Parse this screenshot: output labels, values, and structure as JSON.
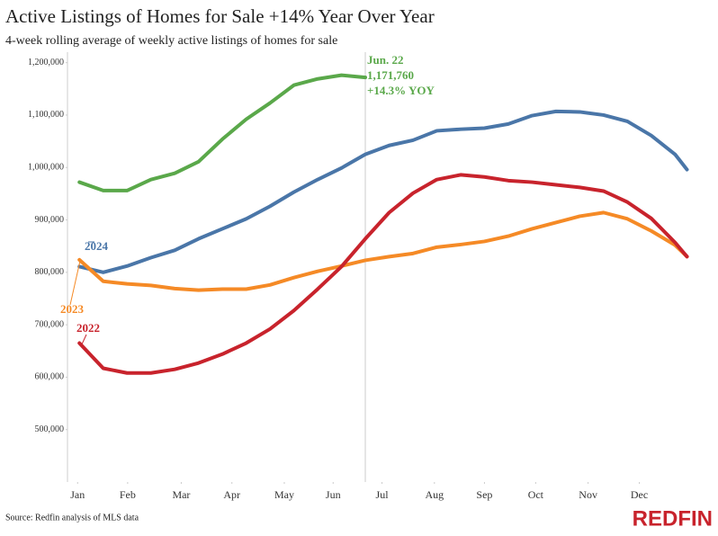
{
  "chart_data": {
    "type": "line",
    "title": "Active Listings of Homes for Sale +14% Year Over Year",
    "subtitle": "4-week rolling average of weekly active listings of homes for sale",
    "source": "Source: Redfin analysis of MLS data",
    "logo": "REDFIN",
    "annotations": [
      "Jun. 22",
      "1,171,760",
      "+14.3% YOY"
    ],
    "x": [
      1,
      3,
      5,
      7,
      9,
      11,
      13,
      15,
      17,
      19,
      21,
      23,
      25,
      27,
      29,
      31,
      33,
      35,
      37,
      39,
      41,
      43,
      45,
      47,
      49,
      51,
      52
    ],
    "xlim": [
      0,
      54
    ],
    "xticks": [
      {
        "value": 0.85,
        "label": "Jan"
      },
      {
        "value": 5.05,
        "label": "Feb"
      },
      {
        "value": 9.55,
        "label": "Mar"
      },
      {
        "value": 13.8,
        "label": "Apr"
      },
      {
        "value": 18.2,
        "label": "May"
      },
      {
        "value": 22.3,
        "label": "Jun"
      },
      {
        "value": 26.4,
        "label": "Jul"
      },
      {
        "value": 30.8,
        "label": "Aug"
      },
      {
        "value": 35.0,
        "label": "Sep"
      },
      {
        "value": 39.3,
        "label": "Oct"
      },
      {
        "value": 43.7,
        "label": "Nov"
      },
      {
        "value": 48.0,
        "label": "Dec"
      }
    ],
    "ylim": [
      400000,
      1220000
    ],
    "yticks": [
      {
        "value": 500000,
        "label": "500,000"
      },
      {
        "value": 600000,
        "label": "600,000"
      },
      {
        "value": 700000,
        "label": "700,000"
      },
      {
        "value": 800000,
        "label": "800,000"
      },
      {
        "value": 900000,
        "label": "900,000"
      },
      {
        "value": 1000000,
        "label": "1,000,000"
      },
      {
        "value": 1100000,
        "label": "1,100,000"
      },
      {
        "value": 1200000,
        "label": "1,200,000"
      }
    ],
    "series": [
      {
        "color": "#5aa84a",
        "values": [
          972000,
          956000,
          956000,
          977000,
          989000,
          1011000,
          1054000,
          1092000,
          1123000,
          1157000,
          1169000,
          1176000,
          1171760,
          null,
          null,
          null,
          null,
          null,
          null,
          null,
          null,
          null,
          null,
          null,
          null,
          null,
          null
        ]
      },
      {
        "name": "2024",
        "color": "#4a76a8",
        "values": [
          811000,
          800000,
          812000,
          828000,
          842000,
          864000,
          883000,
          902000,
          926000,
          953000,
          977000,
          999000,
          1025000,
          1042000,
          1052000,
          1070000,
          1073000,
          1075000,
          1083000,
          1099000,
          1107000,
          1106000,
          1100000,
          1088000,
          1061000,
          1025000,
          996000
        ]
      },
      {
        "name": "2023",
        "color": "#f58a26",
        "values": [
          824000,
          783000,
          778000,
          775000,
          769000,
          766000,
          768000,
          768000,
          776000,
          790000,
          802000,
          812000,
          823000,
          830000,
          836000,
          848000,
          853000,
          859000,
          869000,
          883000,
          895000,
          907000,
          914000,
          902000,
          879000,
          852000,
          830000
        ]
      },
      {
        "name": "2022",
        "color": "#c8232c",
        "values": [
          665000,
          617000,
          608000,
          608000,
          615000,
          627000,
          644000,
          665000,
          692000,
          727000,
          768000,
          811000,
          864000,
          914000,
          951000,
          977000,
          986000,
          982000,
          975000,
          972000,
          967000,
          962000,
          955000,
          934000,
          903000,
          857000,
          830000
        ]
      }
    ]
  }
}
